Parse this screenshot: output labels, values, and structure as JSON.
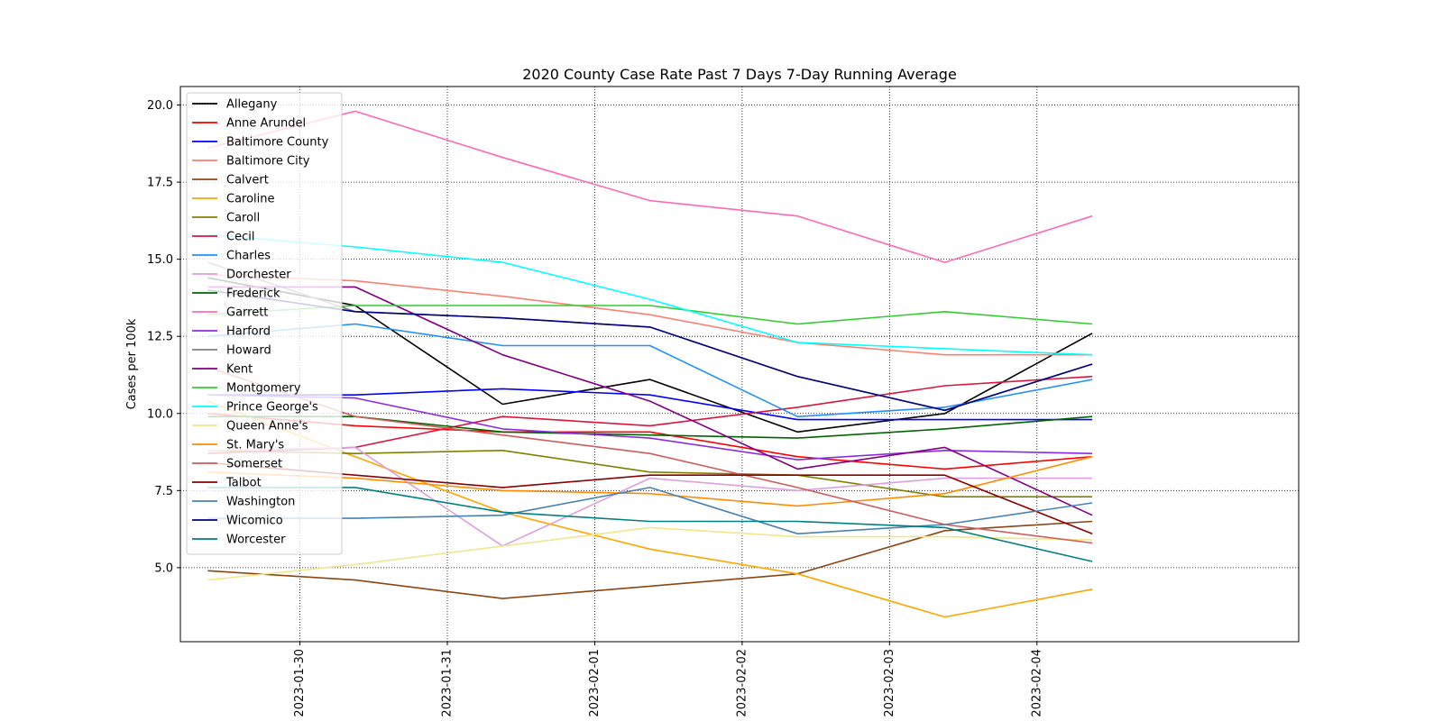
{
  "chart_data": {
    "type": "line",
    "title": "2020 County Case Rate  Past 7 Days 7-Day Running Average",
    "xlabel": "",
    "ylabel": "Cases per 100k",
    "x_dates": [
      "2023-01-29 09:00",
      "2023-01-30 09:00",
      "2023-01-31 09:00",
      "2023-02-01 09:00",
      "2023-02-02 09:00",
      "2023-02-03 09:00",
      "2023-02-04 09:00"
    ],
    "x_tick_labels": [
      "2023-01-30",
      "2023-01-31",
      "2023-02-01",
      "2023-02-02",
      "2023-02-03",
      "2023-02-04"
    ],
    "xlim": [
      "2023-01-29 04:32",
      "2023-02-05 18:37"
    ],
    "ylim": [
      2.6,
      20.6
    ],
    "y_ticks": [
      5.0,
      7.5,
      10.0,
      12.5,
      15.0,
      17.5,
      20.0
    ],
    "y_tick_labels": [
      "5.0",
      "7.5",
      "10.0",
      "12.5",
      "15.0",
      "17.5",
      "20.0"
    ],
    "grid": true,
    "grid_style": "dotted",
    "legend_position": "upper-left",
    "series": [
      {
        "name": "Allegany",
        "color": "#000000",
        "values": [
          14.4,
          13.5,
          10.3,
          11.1,
          9.4,
          10.0,
          12.6
        ]
      },
      {
        "name": "Anne Arundel",
        "color": "#ff0000",
        "values": [
          10.0,
          9.6,
          9.4,
          9.4,
          8.6,
          8.2,
          8.6
        ]
      },
      {
        "name": "Baltimore County",
        "color": "#0000ff",
        "values": [
          10.6,
          10.6,
          10.8,
          10.6,
          9.8,
          9.8,
          9.8
        ]
      },
      {
        "name": "Baltimore City",
        "color": "#fa8072",
        "values": [
          14.5,
          14.3,
          13.8,
          13.2,
          12.3,
          11.9,
          11.9
        ]
      },
      {
        "name": "Calvert",
        "color": "#8b4513",
        "values": [
          4.9,
          4.6,
          4.0,
          4.4,
          4.8,
          6.2,
          6.5
        ]
      },
      {
        "name": "Caroline",
        "color": "#ffa500",
        "values": [
          10.4,
          8.6,
          6.8,
          5.6,
          4.8,
          3.4,
          4.3
        ]
      },
      {
        "name": "Caroll",
        "color": "#808000",
        "values": [
          8.8,
          8.7,
          8.8,
          8.1,
          8.0,
          7.3,
          7.3
        ]
      },
      {
        "name": "Cecil",
        "color": "#dc143c",
        "values": [
          8.7,
          8.9,
          9.9,
          9.6,
          10.2,
          10.9,
          11.2
        ]
      },
      {
        "name": "Charles",
        "color": "#1e90ff",
        "values": [
          12.5,
          12.9,
          12.2,
          12.2,
          9.9,
          10.2,
          11.1
        ]
      },
      {
        "name": "Dorchester",
        "color": "#dda0dd",
        "values": [
          8.8,
          8.9,
          5.7,
          7.9,
          7.5,
          7.9,
          7.9
        ]
      },
      {
        "name": "Frederick",
        "color": "#006400",
        "values": [
          9.9,
          9.9,
          9.4,
          9.3,
          9.2,
          9.5,
          9.9
        ]
      },
      {
        "name": "Garrett",
        "color": "#ff69b4",
        "values": [
          18.6,
          19.8,
          18.3,
          16.9,
          16.4,
          14.9,
          16.4
        ]
      },
      {
        "name": "Harford",
        "color": "#8a2be2",
        "values": [
          10.6,
          10.5,
          9.5,
          9.2,
          8.5,
          8.8,
          8.7
        ]
      },
      {
        "name": "Howard",
        "color": "#808080",
        "values": [
          14.9,
          13.3,
          13.1,
          12.8,
          11.2,
          10.1,
          11.6
        ]
      },
      {
        "name": "Kent",
        "color": "#800080",
        "values": [
          14.1,
          14.1,
          11.9,
          10.4,
          8.2,
          8.9,
          6.7
        ]
      },
      {
        "name": "Montgomery",
        "color": "#32cd32",
        "values": [
          13.2,
          13.5,
          13.5,
          13.5,
          12.9,
          13.3,
          12.9
        ]
      },
      {
        "name": "Prince George's",
        "color": "#00ffff",
        "values": [
          15.8,
          15.4,
          14.9,
          13.7,
          12.3,
          12.1,
          11.9
        ]
      },
      {
        "name": "Queen Anne's",
        "color": "#f0e68c",
        "values": [
          4.6,
          5.1,
          5.7,
          6.3,
          6.0,
          6.0,
          5.9
        ]
      },
      {
        "name": "St. Mary's",
        "color": "#ff8c00",
        "values": [
          8.1,
          7.9,
          7.5,
          7.4,
          7.0,
          7.4,
          8.6
        ]
      },
      {
        "name": "Somerset",
        "color": "#cd5c5c",
        "values": [
          11.5,
          9.9,
          9.3,
          8.7,
          7.6,
          6.4,
          5.8
        ]
      },
      {
        "name": "Talbot",
        "color": "#8b0000",
        "values": [
          8.4,
          8.0,
          7.6,
          8.0,
          8.0,
          8.0,
          6.1
        ]
      },
      {
        "name": "Washington",
        "color": "#4682b4",
        "values": [
          6.6,
          6.6,
          6.7,
          7.6,
          6.1,
          6.4,
          7.1
        ]
      },
      {
        "name": "Wicomico",
        "color": "#000080",
        "values": [
          14.0,
          13.3,
          13.1,
          12.8,
          11.2,
          10.1,
          11.6
        ]
      },
      {
        "name": "Worcester",
        "color": "#008080",
        "values": [
          7.6,
          7.6,
          6.8,
          6.5,
          6.5,
          6.3,
          5.2
        ]
      }
    ]
  }
}
